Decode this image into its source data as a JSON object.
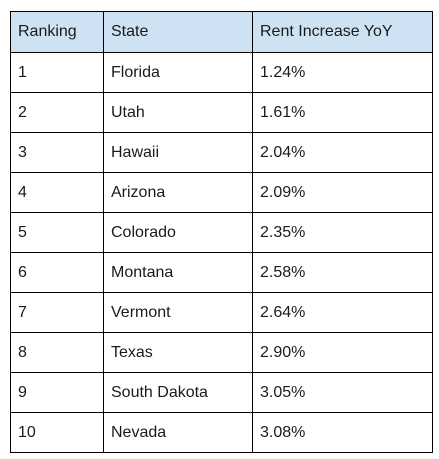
{
  "table": {
    "headers": [
      "Ranking",
      "State",
      "Rent Increase YoY"
    ],
    "rows": [
      [
        "1",
        "Florida",
        "1.24%"
      ],
      [
        "2",
        "Utah",
        "1.61%"
      ],
      [
        "3",
        "Hawaii",
        "2.04%"
      ],
      [
        "4",
        "Arizona",
        "2.09%"
      ],
      [
        "5",
        "Colorado",
        "2.35%"
      ],
      [
        "6",
        "Montana",
        "2.58%"
      ],
      [
        "7",
        "Vermont",
        "2.64%"
      ],
      [
        "8",
        "Texas",
        "2.90%"
      ],
      [
        "9",
        "South Dakota",
        "3.05%"
      ],
      [
        "10",
        "Nevada",
        "3.08%"
      ]
    ]
  },
  "colors": {
    "header_bg": "#cfe2f3",
    "border": "#000000"
  }
}
